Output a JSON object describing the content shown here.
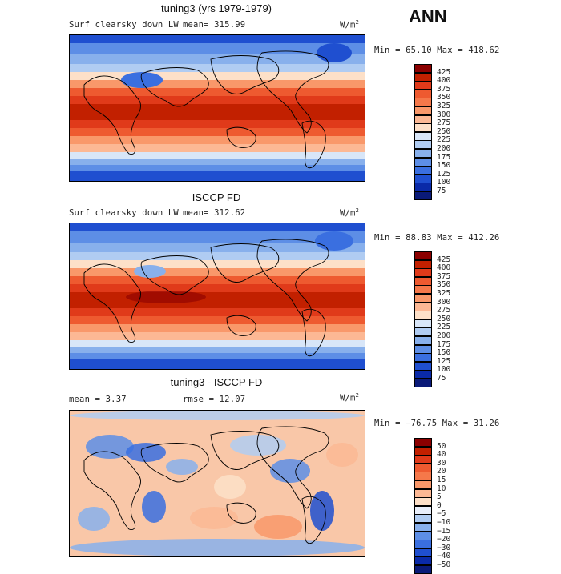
{
  "season": "ANN",
  "panels": [
    {
      "title": "tuning3 (yrs 1979-1979)",
      "field_label": "Surf clearsky down LW",
      "mean_text": "mean=  315.99",
      "unit_base": "W/m",
      "unit_exp": "2",
      "minmax_text": "Min =  65.10 Max = 418.62",
      "legend_levels": [
        "425",
        "400",
        "375",
        "350",
        "325",
        "300",
        "275",
        "250",
        "225",
        "200",
        "175",
        "150",
        "125",
        "100",
        "75"
      ],
      "legend_colors": [
        "#8b0000",
        "#c22000",
        "#e03a1a",
        "#ee5a30",
        "#f5784a",
        "#f9986a",
        "#fcb894",
        "#fde0c8",
        "#d8e6f8",
        "#b0ccf2",
        "#88b0ec",
        "#5d8ee6",
        "#3a6fe0",
        "#1f4fd0",
        "#0a2aa8",
        "#0a1a78"
      ],
      "map_kind": "abs_a"
    },
    {
      "title": "ISCCP FD",
      "field_label": "Surf clearsky down LW",
      "mean_text": "mean=  312.62",
      "unit_base": "W/m",
      "unit_exp": "2",
      "minmax_text": "Min =  88.83 Max = 412.26",
      "legend_levels": [
        "425",
        "400",
        "375",
        "350",
        "325",
        "300",
        "275",
        "250",
        "225",
        "200",
        "175",
        "150",
        "125",
        "100",
        "75"
      ],
      "legend_colors": [
        "#8b0000",
        "#c22000",
        "#e03a1a",
        "#ee5a30",
        "#f5784a",
        "#f9986a",
        "#fcb894",
        "#fde0c8",
        "#d8e6f8",
        "#b0ccf2",
        "#88b0ec",
        "#5d8ee6",
        "#3a6fe0",
        "#1f4fd0",
        "#0a2aa8",
        "#0a1a78"
      ],
      "map_kind": "abs_b"
    },
    {
      "title": "tuning3 - ISCCP FD",
      "mean_text": "mean =    3.37",
      "rmse_text": "rmse =   12.07",
      "unit_base": "W/m",
      "unit_exp": "2",
      "minmax_text": "Min = −76.75 Max =   31.26",
      "legend_levels": [
        "50",
        "40",
        "30",
        "20",
        "15",
        "10",
        "5",
        "0",
        "−5",
        "−10",
        "−15",
        "−20",
        "−30",
        "−40",
        "−50"
      ],
      "legend_colors": [
        "#8b0000",
        "#c22000",
        "#e03a1a",
        "#ee5a30",
        "#f5784a",
        "#f9986a",
        "#fcb894",
        "#fde0c8",
        "#e8eefa",
        "#b0ccf2",
        "#88b0ec",
        "#5d8ee6",
        "#3a6fe0",
        "#1f4fd0",
        "#0a2aa8",
        "#0a1a78"
      ],
      "map_kind": "diff"
    }
  ]
}
